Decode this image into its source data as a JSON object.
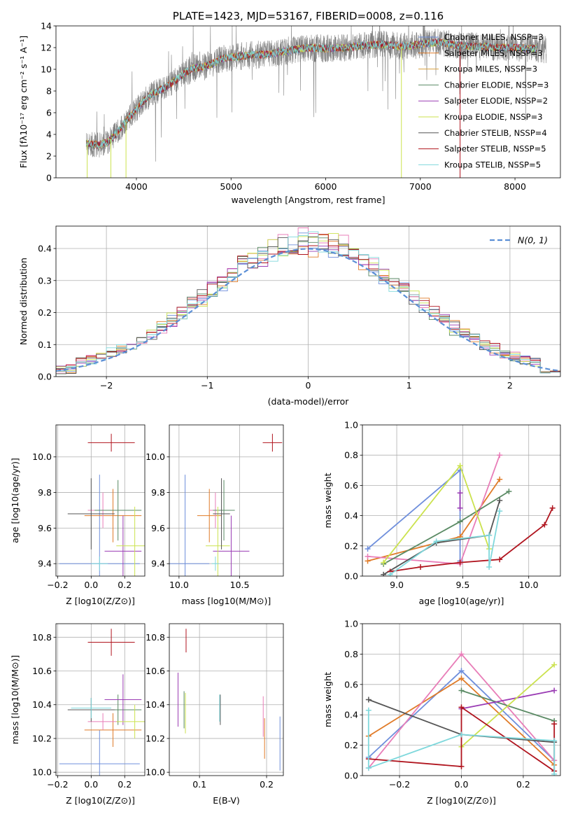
{
  "colors": {
    "chabrier_miles": "#6f8fdc",
    "salpeter_miles": "#e07b28",
    "kroupa_miles": "#d8a040",
    "chabrier_elodie": "#5a8a64",
    "salpeter_elodie": "#9a3cb4",
    "kroupa_elodie": "#cbe24e",
    "chabrier_stelib": "#555555",
    "salpeter_stelib": "#b0141e",
    "kroupa_stelib": "#7fd8dc",
    "pink": "#e87db8",
    "data_grey": "#808080",
    "gauss": "#5b8fd6"
  },
  "chart_data": [
    {
      "id": "spectrum",
      "type": "line",
      "title": "PLATE=1423, MJD=53167, FIBERID=0008, z=0.116",
      "xlabel": "wavelength [Angstrom, rest frame]",
      "ylabel": "Flux [fλ10⁻¹⁷ erg cm⁻² s⁻¹ A⁻¹]",
      "xlim": [
        3150,
        8480
      ],
      "ylim": [
        0,
        14
      ],
      "xticks": [
        4000,
        5000,
        6000,
        7000,
        8000
      ],
      "yticks": [
        0,
        2,
        4,
        6,
        8,
        10,
        12,
        14
      ],
      "legend_position": "top-right",
      "legend": [
        {
          "label": "Chabrier MILES, NSSP=3",
          "color": "chabrier_miles"
        },
        {
          "label": "Salpeter MILES, NSSP=3",
          "color": "salpeter_miles"
        },
        {
          "label": "Kroupa MILES, NSSP=3",
          "color": "kroupa_miles"
        },
        {
          "label": "Chabrier ELODIE, NSSP=3",
          "color": "chabrier_elodie"
        },
        {
          "label": "Salpeter ELODIE, NSSP=2",
          "color": "salpeter_elodie"
        },
        {
          "label": "Kroupa ELODIE, NSSP=3",
          "color": "kroupa_elodie"
        },
        {
          "label": "Chabrier STELIB, NSSP=4",
          "color": "chabrier_stelib"
        },
        {
          "label": "Salpeter STELIB, NSSP=5",
          "color": "salpeter_stelib"
        },
        {
          "label": "Kroupa STELIB, NSSP=5",
          "color": "kroupa_stelib"
        }
      ],
      "data_range": [
        3470,
        8330
      ],
      "model_range": [
        3470,
        8230
      ],
      "continuum": [
        [
          3470,
          3.2
        ],
        [
          3600,
          3.0
        ],
        [
          3700,
          3.3
        ],
        [
          3800,
          4.2
        ],
        [
          3900,
          5.3
        ],
        [
          4000,
          6.3
        ],
        [
          4100,
          7.3
        ],
        [
          4200,
          7.9
        ],
        [
          4300,
          8.3
        ],
        [
          4400,
          8.9
        ],
        [
          4500,
          9.6
        ],
        [
          4600,
          10.1
        ],
        [
          4700,
          10.2
        ],
        [
          4800,
          10.5
        ],
        [
          4900,
          11.0
        ],
        [
          5000,
          11.1
        ],
        [
          5200,
          11.3
        ],
        [
          5400,
          11.4
        ],
        [
          5600,
          11.7
        ],
        [
          5800,
          12.0
        ],
        [
          6000,
          11.9
        ],
        [
          6200,
          12.0
        ],
        [
          6400,
          12.2
        ],
        [
          6600,
          12.3
        ],
        [
          6800,
          12.1
        ],
        [
          7000,
          12.3
        ],
        [
          7200,
          12.5
        ],
        [
          7400,
          12.2
        ],
        [
          7600,
          12.1
        ],
        [
          7800,
          12.0
        ],
        [
          8000,
          12.0
        ],
        [
          8200,
          11.9
        ],
        [
          8330,
          11.8
        ]
      ],
      "spikes": [
        [
          3480,
          0
        ],
        [
          3730,
          0
        ],
        [
          3890,
          0
        ],
        [
          6800,
          0
        ],
        [
          7420,
          0
        ]
      ]
    },
    {
      "id": "residuals",
      "type": "histogram",
      "xlabel": "(data-model)/error",
      "ylabel": "Normed distribution",
      "xlim": [
        -2.5,
        2.5
      ],
      "ylim": [
        0,
        0.47
      ],
      "xticks": [
        -2,
        -1,
        0,
        1,
        2
      ],
      "yticks": [
        0,
        0.1,
        0.2,
        0.3,
        0.4
      ],
      "legend_position": "top-right",
      "legend": [
        {
          "label": "N(0, 1)",
          "style": "dashed",
          "color": "gauss"
        }
      ],
      "bin_width": 0.1,
      "series_colors": [
        "chabrier_miles",
        "salpeter_miles",
        "pink",
        "chabrier_elodie",
        "salpeter_elodie",
        "kroupa_elodie",
        "chabrier_stelib",
        "salpeter_stelib",
        "kroupa_stelib"
      ]
    },
    {
      "id": "age_vs_Z",
      "type": "errorbar",
      "xlabel": "Z [log10(Z/Z⊙)]",
      "ylabel": "age [log10(age/yr)]",
      "xlim": [
        -0.21,
        0.32
      ],
      "ylim": [
        9.33,
        10.18
      ],
      "xticks": [
        -0.2,
        0.0,
        0.2
      ],
      "yticks": [
        9.4,
        9.6,
        9.8,
        10.0
      ],
      "points": [
        {
          "x": 0.05,
          "xerr": 0.24,
          "y": 9.4,
          "yerr": 0.5,
          "color": "chabrier_miles"
        },
        {
          "x": 0.13,
          "xerr": 0.17,
          "y": 9.67,
          "yerr": 0.15,
          "color": "salpeter_miles"
        },
        {
          "x": 0.07,
          "xerr": 0.09,
          "y": 9.7,
          "yerr": 0.1,
          "color": "pink"
        },
        {
          "x": 0.16,
          "xerr": 0.14,
          "y": 9.7,
          "yerr": 0.17,
          "color": "chabrier_elodie"
        },
        {
          "x": 0.19,
          "xerr": 0.11,
          "y": 9.47,
          "yerr": 0.2,
          "color": "salpeter_elodie"
        },
        {
          "x": 0.26,
          "xerr": 0.11,
          "y": 9.5,
          "yerr": 0.22,
          "color": "kroupa_elodie"
        },
        {
          "x": 0.0,
          "xerr": 0.14,
          "y": 9.68,
          "yerr": 0.2,
          "color": "chabrier_stelib"
        },
        {
          "x": 0.12,
          "xerr": 0.14,
          "y": 10.08,
          "yerr": 0.05,
          "color": "salpeter_stelib"
        },
        {
          "x": 0.05,
          "xerr": 0.05,
          "y": 9.4,
          "yerr": 0.04,
          "color": "kroupa_stelib"
        }
      ]
    },
    {
      "id": "age_vs_mass",
      "type": "errorbar",
      "xlabel": "mass [log10(M/M⊙)]",
      "ylabel": "",
      "xlim": [
        9.92,
        10.86
      ],
      "ylim": [
        9.33,
        10.18
      ],
      "xticks": [
        10.0,
        10.5
      ],
      "yticks": [
        9.4,
        9.6,
        9.8,
        10.0
      ],
      "points": [
        {
          "x": 10.05,
          "xerr": 0.2,
          "y": 9.4,
          "yerr": 0.5,
          "color": "chabrier_miles"
        },
        {
          "x": 10.25,
          "xerr": 0.1,
          "y": 9.67,
          "yerr": 0.15,
          "color": "salpeter_miles"
        },
        {
          "x": 10.3,
          "xerr": 0.05,
          "y": 9.7,
          "yerr": 0.1,
          "color": "pink"
        },
        {
          "x": 10.37,
          "xerr": 0.09,
          "y": 9.7,
          "yerr": 0.17,
          "color": "chabrier_elodie"
        },
        {
          "x": 10.43,
          "xerr": 0.15,
          "y": 9.47,
          "yerr": 0.2,
          "color": "salpeter_elodie"
        },
        {
          "x": 10.32,
          "xerr": 0.1,
          "y": 9.5,
          "yerr": 0.22,
          "color": "kroupa_elodie"
        },
        {
          "x": 10.35,
          "xerr": 0.07,
          "y": 9.68,
          "yerr": 0.2,
          "color": "chabrier_stelib"
        },
        {
          "x": 10.77,
          "xerr": 0.08,
          "y": 10.08,
          "yerr": 0.05,
          "color": "salpeter_stelib"
        },
        {
          "x": 10.3,
          "xerr": 0.03,
          "y": 9.4,
          "yerr": 0.04,
          "color": "kroupa_stelib"
        }
      ]
    },
    {
      "id": "weight_vs_age",
      "type": "line",
      "xlabel": "age [log10(age/yr)]",
      "ylabel": "mass weight",
      "xlim": [
        8.74,
        10.24
      ],
      "ylim": [
        0,
        1
      ],
      "xticks": [
        9.0,
        9.5,
        10.0
      ],
      "yticks": [
        0,
        0.2,
        0.4,
        0.6,
        0.8,
        1.0
      ],
      "series": [
        {
          "color": "chabrier_miles",
          "points": [
            [
              8.78,
              0.18
            ],
            [
              9.48,
              0.7
            ],
            [
              9.48,
              0.1
            ]
          ]
        },
        {
          "color": "salpeter_miles",
          "points": [
            [
              8.78,
              0.1
            ],
            [
              9.48,
              0.26
            ],
            [
              9.78,
              0.64
            ]
          ]
        },
        {
          "color": "pink",
          "points": [
            [
              8.78,
              0.13
            ],
            [
              9.48,
              0.08
            ],
            [
              9.78,
              0.8
            ]
          ]
        },
        {
          "color": "chabrier_elodie",
          "points": [
            [
              8.9,
              0.08
            ],
            [
              9.48,
              0.36
            ],
            [
              9.85,
              0.56
            ]
          ]
        },
        {
          "color": "salpeter_elodie",
          "points": [
            [
              9.48,
              0.45
            ],
            [
              9.48,
              0.55
            ]
          ]
        },
        {
          "color": "kroupa_elodie",
          "points": [
            [
              8.9,
              0.09
            ],
            [
              9.48,
              0.73
            ],
            [
              9.7,
              0.18
            ]
          ]
        },
        {
          "color": "chabrier_stelib",
          "points": [
            [
              8.9,
              0.01
            ],
            [
              9.3,
              0.22
            ],
            [
              9.7,
              0.27
            ],
            [
              9.78,
              0.5
            ]
          ]
        },
        {
          "color": "salpeter_stelib",
          "points": [
            [
              8.95,
              0.03
            ],
            [
              9.18,
              0.06
            ],
            [
              9.48,
              0.09
            ],
            [
              9.78,
              0.11
            ],
            [
              10.12,
              0.34
            ],
            [
              10.18,
              0.45
            ]
          ]
        },
        {
          "color": "kroupa_stelib",
          "points": [
            [
              8.95,
              0.01
            ],
            [
              9.3,
              0.23
            ],
            [
              9.7,
              0.27
            ],
            [
              9.7,
              0.06
            ],
            [
              9.78,
              0.43
            ]
          ]
        }
      ]
    },
    {
      "id": "mass_vs_Z",
      "type": "errorbar",
      "xlabel": "Z [log10(Z/Z⊙)]",
      "ylabel": "mass [log10(M/M⊙)]",
      "xlim": [
        -0.21,
        0.32
      ],
      "ylim": [
        9.98,
        10.88
      ],
      "xticks": [
        -0.2,
        0.0,
        0.2
      ],
      "yticks": [
        10.0,
        10.2,
        10.4,
        10.6,
        10.8
      ],
      "points": [
        {
          "x": 0.05,
          "xerr": 0.24,
          "y": 10.05,
          "yerr": 0.2,
          "color": "chabrier_miles"
        },
        {
          "x": 0.13,
          "xerr": 0.17,
          "y": 10.25,
          "yerr": 0.1,
          "color": "salpeter_miles"
        },
        {
          "x": 0.07,
          "xerr": 0.09,
          "y": 10.3,
          "yerr": 0.05,
          "color": "pink"
        },
        {
          "x": 0.16,
          "xerr": 0.14,
          "y": 10.37,
          "yerr": 0.09,
          "color": "chabrier_elodie"
        },
        {
          "x": 0.19,
          "xerr": 0.11,
          "y": 10.43,
          "yerr": 0.15,
          "color": "salpeter_elodie"
        },
        {
          "x": 0.26,
          "xerr": 0.11,
          "y": 10.3,
          "yerr": 0.1,
          "color": "kroupa_elodie"
        },
        {
          "x": 0.0,
          "xerr": 0.14,
          "y": 10.37,
          "yerr": 0.07,
          "color": "chabrier_stelib"
        },
        {
          "x": 0.12,
          "xerr": 0.14,
          "y": 10.77,
          "yerr": 0.08,
          "color": "salpeter_stelib"
        },
        {
          "x": 0.0,
          "xerr": 0.12,
          "y": 10.38,
          "yerr": 0.06,
          "color": "kroupa_stelib"
        }
      ]
    },
    {
      "id": "mass_vs_ebv",
      "type": "errorbar",
      "xlabel": "E(B-V)",
      "ylabel": "",
      "xlim": [
        0.055,
        0.225
      ],
      "ylim": [
        9.98,
        10.88
      ],
      "xticks": [
        0.1,
        0.2
      ],
      "yticks": [
        10.0,
        10.2,
        10.4,
        10.6,
        10.8
      ],
      "points": [
        {
          "x": 0.22,
          "y": 10.17,
          "yerr": 0.16,
          "color": "chabrier_miles"
        },
        {
          "x": 0.197,
          "y": 10.2,
          "yerr": 0.12,
          "color": "salpeter_miles"
        },
        {
          "x": 0.195,
          "y": 10.33,
          "yerr": 0.12,
          "color": "pink"
        },
        {
          "x": 0.077,
          "y": 10.37,
          "yerr": 0.11,
          "color": "chabrier_elodie"
        },
        {
          "x": 0.068,
          "y": 10.43,
          "yerr": 0.16,
          "color": "salpeter_elodie"
        },
        {
          "x": 0.079,
          "y": 10.35,
          "yerr": 0.12,
          "color": "kroupa_elodie"
        },
        {
          "x": 0.131,
          "y": 10.37,
          "yerr": 0.09,
          "color": "chabrier_stelib"
        },
        {
          "x": 0.08,
          "y": 10.78,
          "yerr": 0.07,
          "color": "salpeter_stelib"
        },
        {
          "x": 0.13,
          "y": 10.38,
          "yerr": 0.08,
          "color": "kroupa_stelib"
        }
      ]
    },
    {
      "id": "weight_vs_Z",
      "type": "line",
      "xlabel": "Z [log10(Z/Z⊙)]",
      "ylabel": "mass weight",
      "xlim": [
        -0.32,
        0.32
      ],
      "ylim": [
        0,
        1
      ],
      "xticks": [
        -0.2,
        0.0,
        0.2
      ],
      "yticks": [
        0,
        0.2,
        0.4,
        0.6,
        0.8,
        1.0
      ],
      "series": [
        {
          "color": "chabrier_miles",
          "points": [
            [
              -0.3,
              0.12
            ],
            [
              0.0,
              0.69
            ],
            [
              0.3,
              0.1
            ]
          ]
        },
        {
          "color": "salpeter_miles",
          "points": [
            [
              -0.3,
              0.26
            ],
            [
              0.0,
              0.64
            ],
            [
              0.3,
              0.07
            ]
          ]
        },
        {
          "color": "pink",
          "points": [
            [
              -0.3,
              0.05
            ],
            [
              0.0,
              0.8
            ],
            [
              0.3,
              0.1
            ]
          ]
        },
        {
          "color": "chabrier_elodie",
          "points": [
            [
              0.0,
              0.56
            ],
            [
              0.3,
              0.36
            ]
          ]
        },
        {
          "color": "salpeter_elodie",
          "points": [
            [
              0.0,
              0.44
            ],
            [
              0.3,
              0.56
            ]
          ]
        },
        {
          "color": "kroupa_elodie",
          "points": [
            [
              0.0,
              0.19
            ],
            [
              0.3,
              0.73
            ]
          ]
        },
        {
          "color": "chabrier_stelib",
          "points": [
            [
              -0.3,
              0.5
            ],
            [
              0.0,
              0.27
            ],
            [
              0.3,
              0.22
            ]
          ]
        },
        {
          "color": "salpeter_stelib",
          "points": [
            [
              -0.3,
              0.11
            ],
            [
              0.0,
              0.06
            ],
            [
              0.0,
              0.45
            ],
            [
              0.3,
              0.03
            ],
            [
              0.3,
              0.34
            ]
          ]
        },
        {
          "color": "kroupa_stelib",
          "points": [
            [
              -0.3,
              0.43
            ],
            [
              -0.3,
              0.05
            ],
            [
              0.0,
              0.27
            ],
            [
              0.3,
              0.23
            ],
            [
              0.3,
              0.01
            ]
          ]
        }
      ]
    }
  ]
}
